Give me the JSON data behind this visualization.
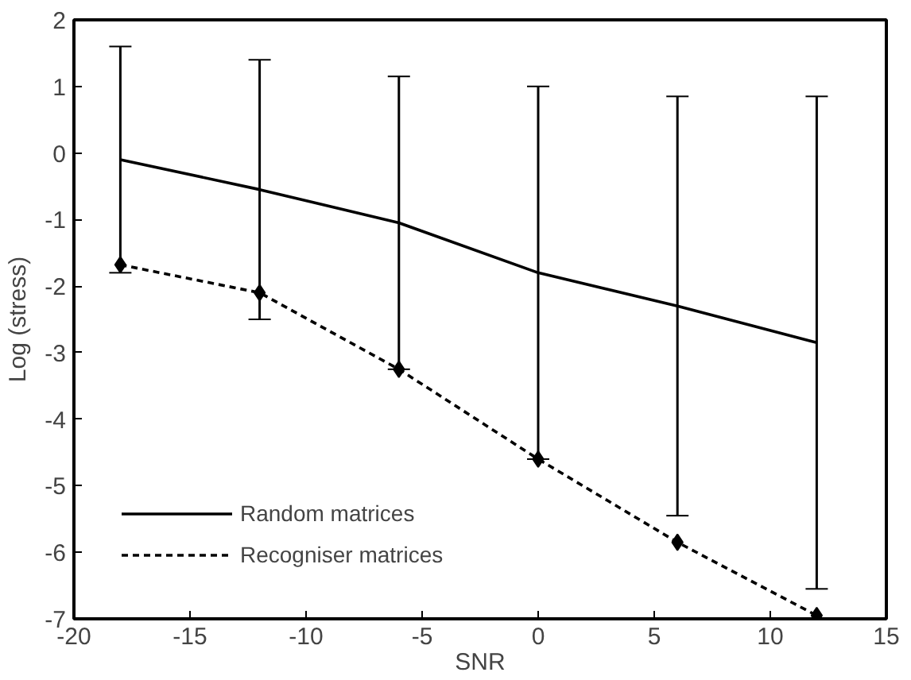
{
  "chart_data": {
    "type": "line",
    "xlabel": "SNR",
    "ylabel": "Log (stress)",
    "x": [
      -18,
      -12,
      -6,
      0,
      6,
      12
    ],
    "series": [
      {
        "name": "Random matrices",
        "color": "#000000",
        "line_style": "solid",
        "marker": "none",
        "values": [
          -0.1,
          -0.55,
          -1.05,
          -1.8,
          -2.3,
          -2.85
        ],
        "errors": [
          1.7,
          1.95,
          2.2,
          2.8,
          3.15,
          3.7
        ]
      },
      {
        "name": "Recogniser matrices",
        "color": "#000000",
        "line_style": "dashed",
        "marker": "diamond",
        "values": [
          -1.68,
          -2.1,
          -3.25,
          -4.6,
          -5.85,
          -6.95
        ]
      }
    ],
    "xlim": [
      -20,
      15
    ],
    "ylim": [
      -7,
      2
    ],
    "xticks": [
      -20,
      -15,
      -10,
      -5,
      0,
      5,
      10,
      15
    ],
    "yticks": [
      -7,
      -6,
      -5,
      -4,
      -3,
      -2,
      -1,
      0,
      1,
      2
    ],
    "grid": false,
    "legend": "bottom left"
  }
}
